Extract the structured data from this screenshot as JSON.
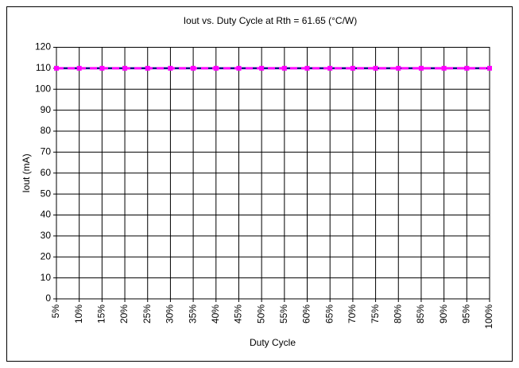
{
  "chart_data": {
    "type": "line",
    "title": "Iout vs. Duty Cycle at Rth = 61.65 (°C/W)",
    "x_label": "Duty Cycle",
    "y_label": "Iout (mA)",
    "categories": [
      "5%",
      "10%",
      "15%",
      "20%",
      "25%",
      "30%",
      "35%",
      "40%",
      "45%",
      "50%",
      "55%",
      "60%",
      "65%",
      "70%",
      "75%",
      "80%",
      "85%",
      "90%",
      "95%",
      "100%"
    ],
    "series": [
      {
        "color": "#000080",
        "values": [
          110,
          110,
          110,
          110,
          110,
          110,
          110,
          110,
          110,
          110,
          110,
          110,
          110,
          110,
          110,
          110,
          110,
          110,
          110,
          110
        ]
      },
      {
        "color": "#ff00ff",
        "values": [
          110,
          110,
          110,
          110,
          110,
          110,
          110,
          110,
          110,
          110,
          110,
          110,
          110,
          110,
          110,
          110,
          110,
          110,
          110,
          110
        ]
      }
    ],
    "ylim": [
      0,
      120
    ],
    "yticks": [
      0,
      10,
      20,
      30,
      40,
      50,
      60,
      70,
      80,
      90,
      100,
      110,
      120
    ],
    "grid": true
  }
}
